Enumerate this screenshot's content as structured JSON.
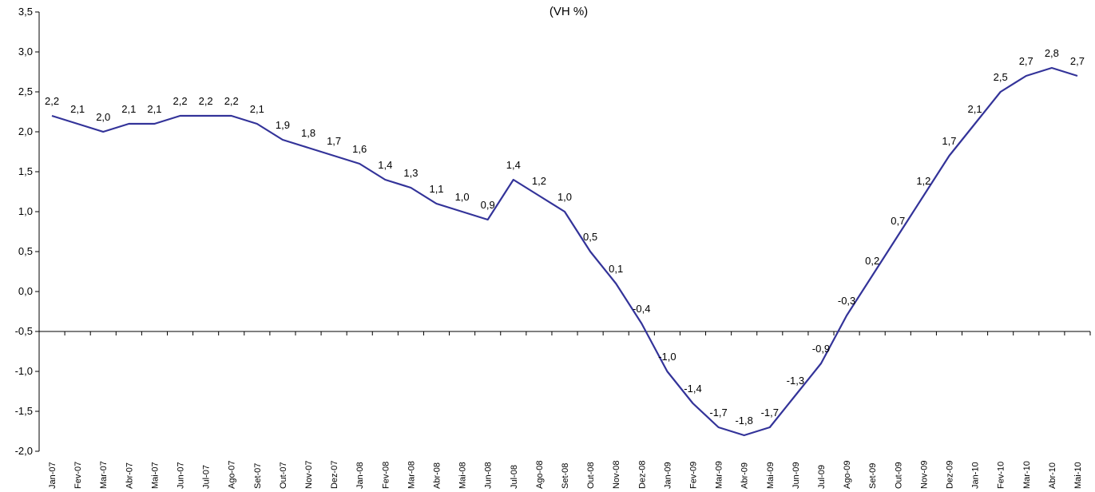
{
  "chart_data": {
    "type": "line",
    "title": "(VH %)",
    "xlabel": "",
    "ylabel": "",
    "ylim": [
      -2.0,
      3.5
    ],
    "yticks": [
      "-2,0",
      "-1,5",
      "-1,0",
      "-0,5",
      "0,0",
      "0,5",
      "1,0",
      "1,5",
      "2,0",
      "2,5",
      "3,0",
      "3,5"
    ],
    "x_axis_crosses_at": -0.5,
    "grid": false,
    "legend": "none",
    "line_color": "#333399",
    "categories": [
      "Jan-07",
      "Fev-07",
      "Mar-07",
      "Abr-07",
      "Mai-07",
      "Jun-07",
      "Jul-07",
      "Ago-07",
      "Set-07",
      "Out-07",
      "Nov-07",
      "Dez-07",
      "Jan-08",
      "Fev-08",
      "Mar-08",
      "Abr-08",
      "Mai-08",
      "Jun-08",
      "Jul-08",
      "Ago-08",
      "Set-08",
      "Out-08",
      "Nov-08",
      "Dez-08",
      "Jan-09",
      "Fev-09",
      "Mar-09",
      "Abr-09",
      "Mai-09",
      "Jun-09",
      "Jul-09",
      "Ago-09",
      "Set-09",
      "Out-09",
      "Nov-09",
      "Dez-09",
      "Jan-10",
      "Fev-10",
      "Mar-10",
      "Abr-10",
      "Mai-10"
    ],
    "values": [
      2.2,
      2.1,
      2.0,
      2.1,
      2.1,
      2.2,
      2.2,
      2.2,
      2.1,
      1.9,
      1.8,
      1.7,
      1.6,
      1.4,
      1.3,
      1.1,
      1.0,
      0.9,
      1.4,
      1.2,
      1.0,
      0.5,
      0.1,
      -0.4,
      -1.0,
      -1.4,
      -1.7,
      -1.8,
      -1.7,
      -1.3,
      -0.9,
      -0.3,
      0.2,
      0.7,
      1.2,
      1.7,
      2.1,
      2.5,
      2.7,
      2.8,
      2.7
    ],
    "data_labels": [
      "2,2",
      "2,1",
      "2,0",
      "2,1",
      "2,1",
      "2,2",
      "2,2",
      "2,2",
      "2,1",
      "1,9",
      "1,8",
      "1,7",
      "1,6",
      "1,4",
      "1,3",
      "1,1",
      "1,0",
      "0,9",
      "1,4",
      "1,2",
      "1,0",
      "0,5",
      "0,1",
      "-0,4",
      "-1,0",
      "-1,4",
      "-1,7",
      "-1,8",
      "-1,7",
      "-1,3",
      "-0,9",
      "-0,3",
      "0,2",
      "0,7",
      "1,2",
      "1,7",
      "2,1",
      "2,5",
      "2,7",
      "2,8",
      "2,7"
    ]
  }
}
